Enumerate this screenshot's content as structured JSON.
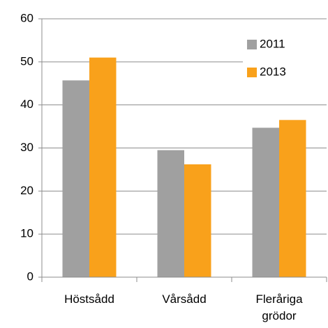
{
  "chart_data": {
    "type": "bar",
    "categories": [
      "Höstsådd",
      "Vårsådd",
      "Fleråriga grödor"
    ],
    "series": [
      {
        "name": "2011",
        "color": "#a0a0a0",
        "values": [
          45.7,
          29.5,
          34.7
        ]
      },
      {
        "name": "2013",
        "color": "#f9a11b",
        "values": [
          51,
          26.2,
          36.5
        ]
      }
    ],
    "ylim": [
      0,
      60
    ],
    "yticks": [
      0,
      10,
      20,
      30,
      40,
      50,
      60
    ],
    "grid": true,
    "legend": "top-right"
  }
}
